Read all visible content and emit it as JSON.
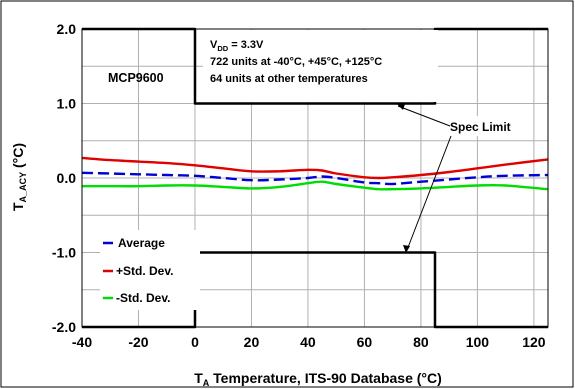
{
  "chart_data": {
    "type": "line",
    "device": "MCP9600",
    "conditions": {
      "vdd_base": "V",
      "vdd_sub": "DD",
      "vdd_value": " = 3.3V",
      "line2": "722 units at -40°C, +45°C, +125°C",
      "line3": "64 units at other temperatures"
    },
    "xlabel": {
      "pre": "T",
      "sub": "A",
      "post": " Temperature, ITS-90 Database (°C)"
    },
    "ylabel": {
      "pre": "T",
      "sub": "A_ACY",
      "post": " (°C)"
    },
    "xlim": [
      -40,
      125
    ],
    "ylim": [
      -2.0,
      2.0
    ],
    "x_ticks": [
      -40,
      -20,
      0,
      20,
      40,
      60,
      80,
      100,
      120
    ],
    "x_tick_labels": [
      "-40",
      "-20",
      "0",
      "20",
      "40",
      "60",
      "80",
      "100",
      "120"
    ],
    "y_ticks": [
      2.0,
      1.0,
      0.0,
      -1.0,
      -2.0
    ],
    "y_tick_labels": [
      "2.0",
      "1.0",
      "0.0",
      "-1.0",
      "-2.0"
    ],
    "grid": true,
    "legend_position": "bottom-left",
    "annotation": "Spec Limit",
    "series": [
      {
        "name": "Average",
        "color": "#0000dd",
        "dash": "dashed",
        "x": [
          -40,
          -30,
          -20,
          -10,
          0,
          10,
          20,
          30,
          40,
          45,
          50,
          60,
          65,
          70,
          80,
          90,
          100,
          110,
          125
        ],
        "y": [
          0.07,
          0.06,
          0.05,
          0.04,
          0.03,
          0.0,
          -0.03,
          -0.02,
          0.0,
          0.02,
          0.0,
          -0.06,
          -0.07,
          -0.08,
          -0.05,
          -0.02,
          0.01,
          0.03,
          0.04
        ]
      },
      {
        "name": "+Std. Dev.",
        "color": "#e00000",
        "dash": "solid",
        "x": [
          -40,
          -30,
          -20,
          -10,
          0,
          10,
          20,
          30,
          40,
          45,
          50,
          60,
          65,
          70,
          80,
          90,
          100,
          110,
          125
        ],
        "y": [
          0.27,
          0.24,
          0.22,
          0.2,
          0.17,
          0.13,
          0.09,
          0.09,
          0.11,
          0.1,
          0.06,
          0.01,
          0.0,
          0.01,
          0.04,
          0.08,
          0.13,
          0.18,
          0.25
        ]
      },
      {
        "name": "-Std. Dev.",
        "color": "#00dd00",
        "dash": "solid",
        "x": [
          -40,
          -30,
          -20,
          -10,
          0,
          10,
          20,
          30,
          40,
          45,
          50,
          60,
          65,
          70,
          80,
          90,
          100,
          110,
          125
        ],
        "y": [
          -0.11,
          -0.11,
          -0.11,
          -0.1,
          -0.1,
          -0.12,
          -0.14,
          -0.12,
          -0.07,
          -0.05,
          -0.08,
          -0.13,
          -0.15,
          -0.15,
          -0.14,
          -0.12,
          -0.1,
          -0.1,
          -0.15
        ]
      },
      {
        "name": "Spec Limit Upper",
        "color": "#000000",
        "dash": "solid",
        "x": [
          -40,
          0,
          0,
          85,
          85,
          125
        ],
        "y": [
          2.0,
          2.0,
          1.0,
          1.0,
          2.0,
          2.0
        ]
      },
      {
        "name": "Spec Limit Lower",
        "color": "#000000",
        "dash": "solid",
        "x": [
          -40,
          0,
          0,
          85,
          85,
          125
        ],
        "y": [
          -2.0,
          -2.0,
          -1.0,
          -1.0,
          -2.0,
          -2.0
        ]
      }
    ]
  }
}
